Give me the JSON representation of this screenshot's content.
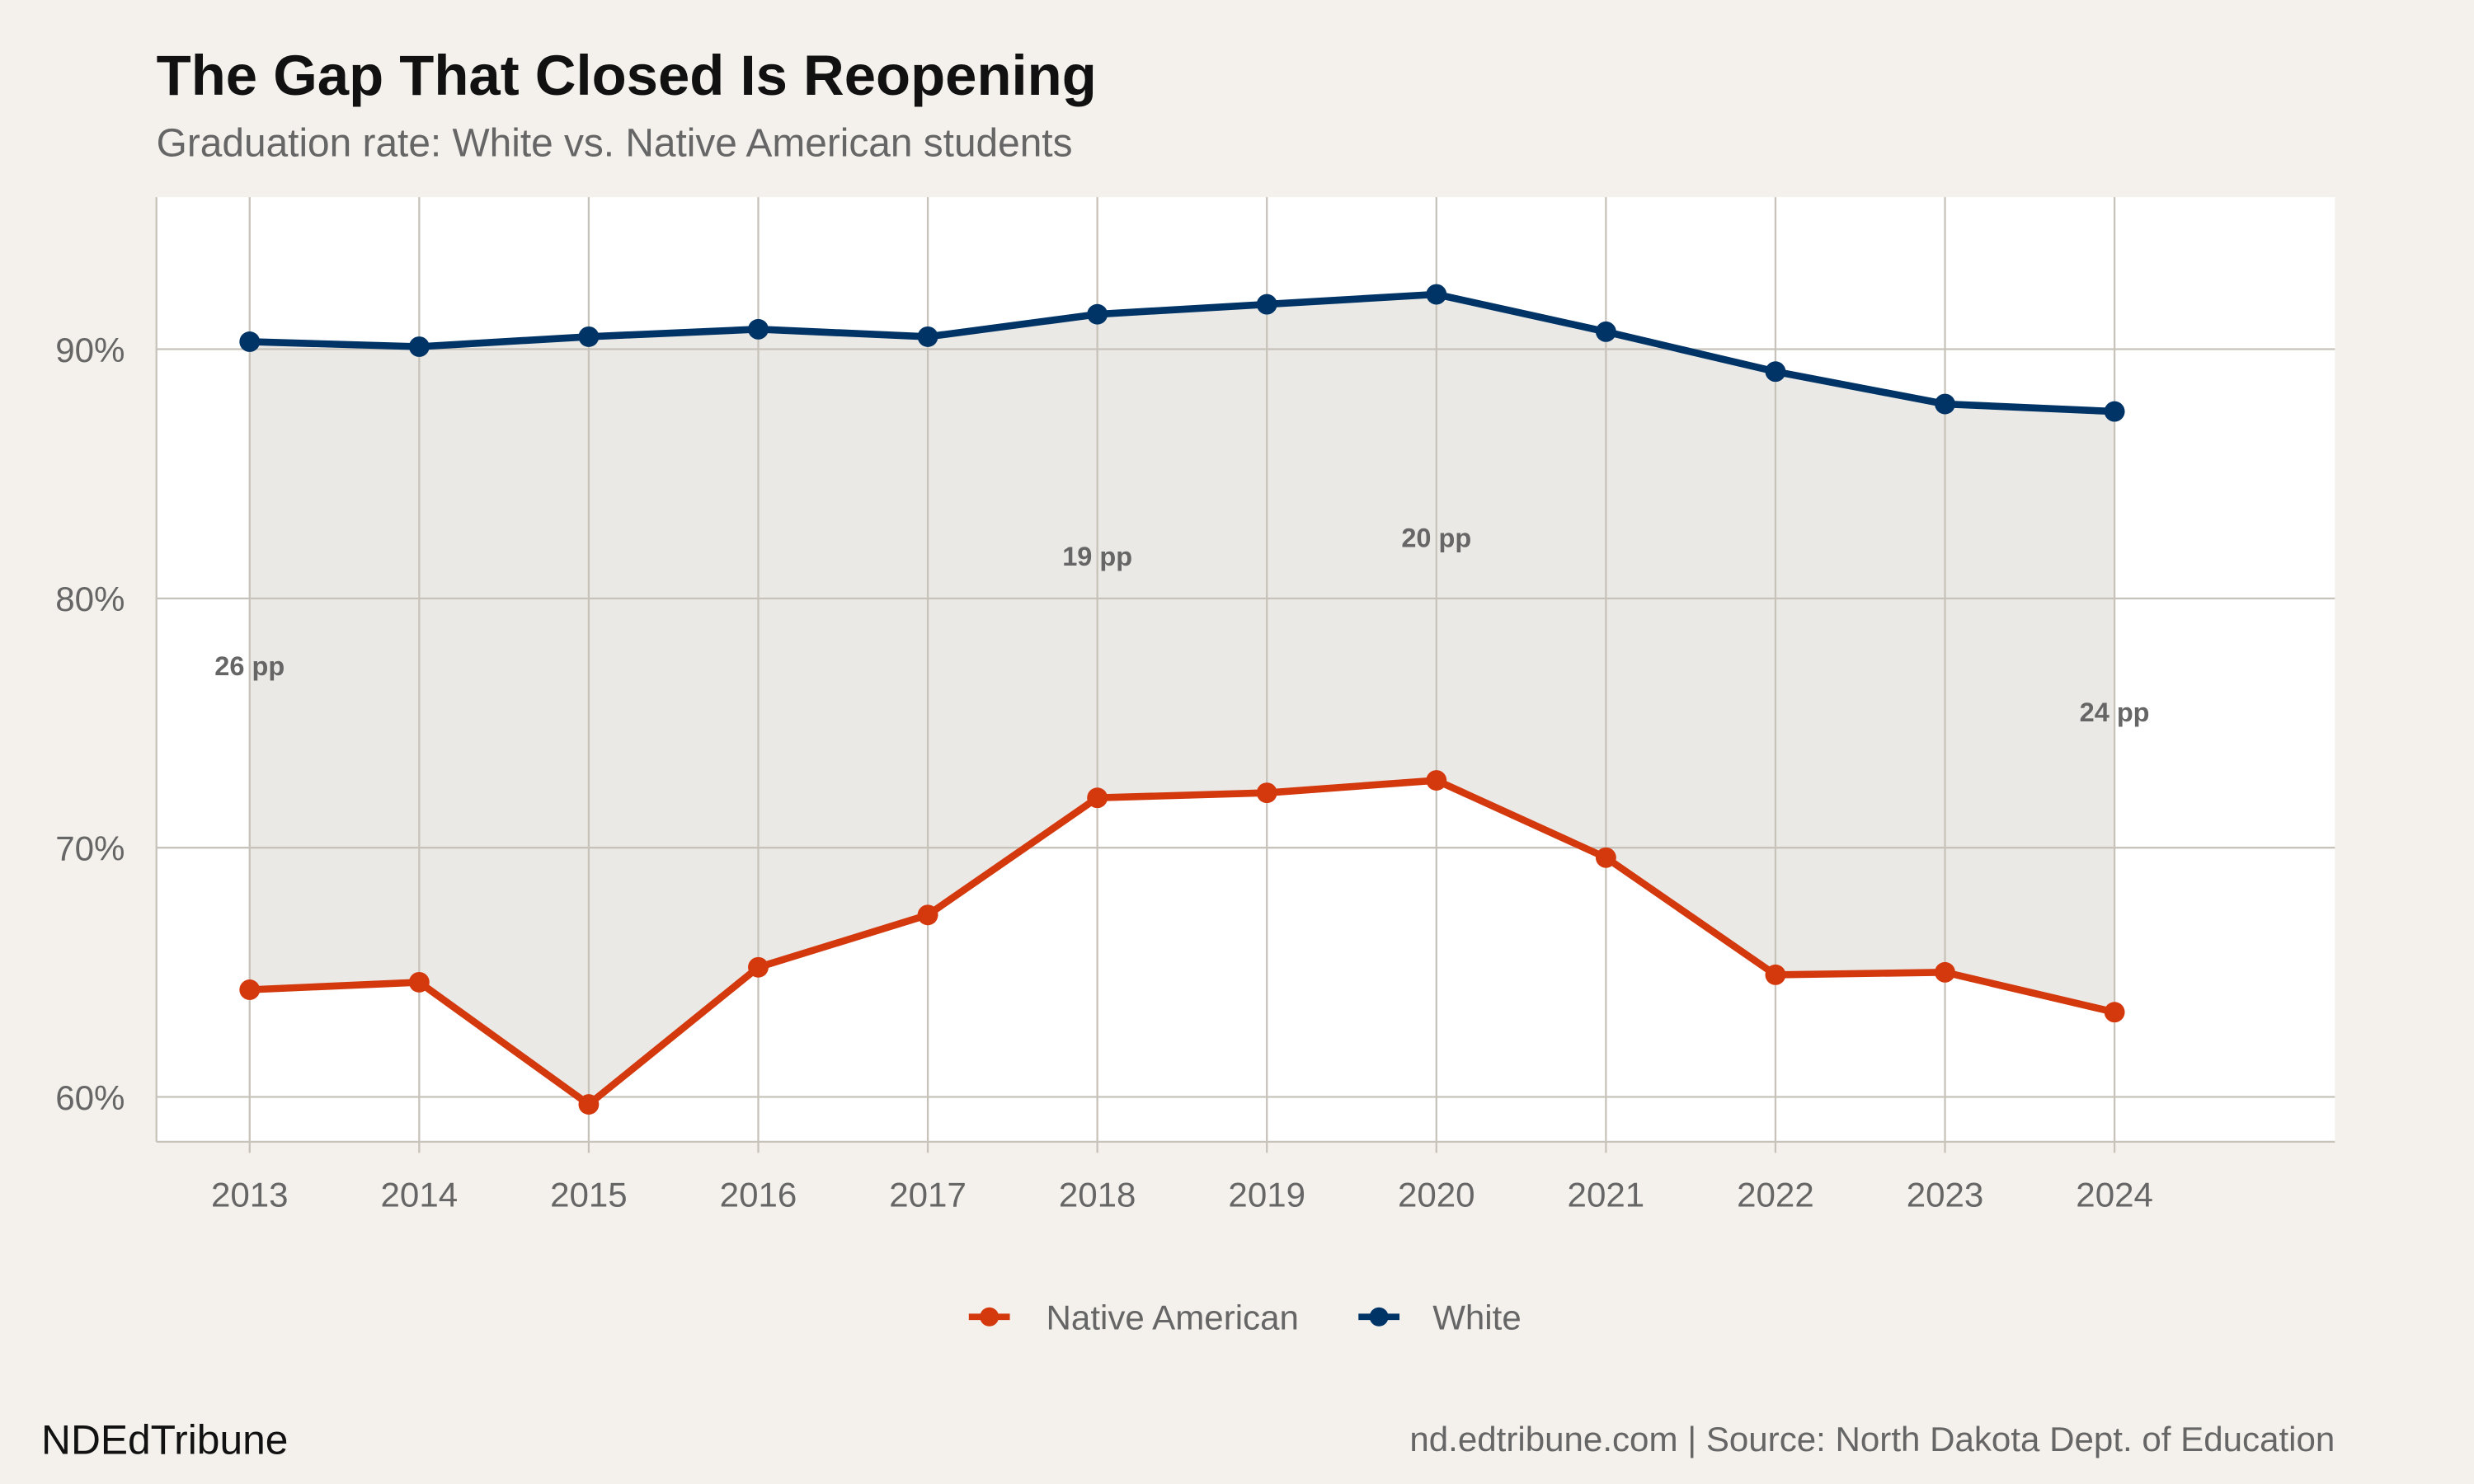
{
  "title": "The Gap That Closed Is Reopening",
  "subtitle": "Graduation rate: White vs. Native American students",
  "brand": "NDEdTribune",
  "caption": "nd.edtribune.com | Source: North Dakota Dept. of Education",
  "colors": {
    "native": "#D4380D",
    "white": "#003366",
    "gap_fill": "#EBE9E5",
    "grid": "#C8C3BA",
    "background": "#F4F1EC",
    "panel": "#FFFFFF"
  },
  "chart_data": {
    "type": "line",
    "x": [
      2013,
      2014,
      2015,
      2016,
      2017,
      2018,
      2019,
      2020,
      2021,
      2022,
      2023,
      2024
    ],
    "x_tick_labels": [
      "2013",
      "2014",
      "2015",
      "2016",
      "2017",
      "2018",
      "2019",
      "2020",
      "2021",
      "2022",
      "2023",
      "2024"
    ],
    "y_ticks": [
      60,
      70,
      80,
      90
    ],
    "y_tick_labels": [
      "60%",
      "70%",
      "80%",
      "90%"
    ],
    "ylim": [
      58.2,
      96.1
    ],
    "xlim": [
      2012.45,
      2025.3
    ],
    "grid": true,
    "legend_position": "bottom",
    "series": [
      {
        "name": "Native American",
        "color": "#D4380D",
        "values": [
          64.3,
          64.6,
          59.7,
          65.2,
          67.3,
          72.0,
          72.2,
          72.7,
          69.6,
          64.9,
          65.0,
          63.4
        ]
      },
      {
        "name": "White",
        "color": "#003366",
        "values": [
          90.3,
          90.1,
          90.5,
          90.8,
          90.5,
          91.4,
          91.8,
          92.2,
          90.7,
          89.1,
          87.8,
          87.5
        ]
      }
    ],
    "annotations": [
      {
        "x": 2013,
        "label": "26 pp"
      },
      {
        "x": 2018,
        "label": "19 pp"
      },
      {
        "x": 2020,
        "label": "20 pp"
      },
      {
        "x": 2024,
        "label": "24 pp"
      }
    ]
  }
}
